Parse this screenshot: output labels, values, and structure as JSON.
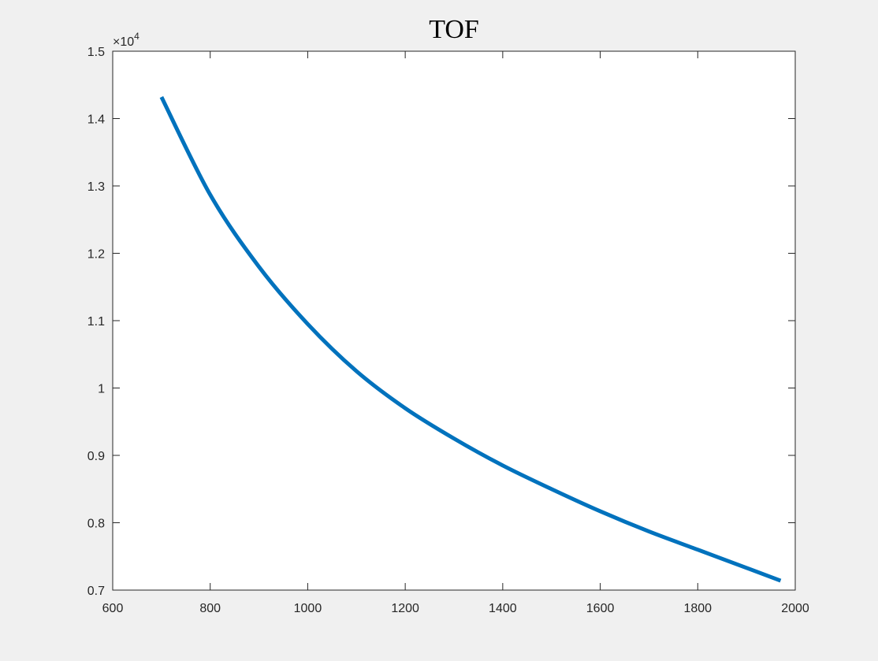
{
  "figure": {
    "background": "#f0f0f0"
  },
  "chart_data": {
    "type": "line",
    "title": "TOF",
    "xlabel": "",
    "ylabel": "",
    "xlim": [
      600,
      2000
    ],
    "ylim": [
      0.7,
      1.5
    ],
    "x_ticks": [
      600,
      800,
      1000,
      1200,
      1400,
      1600,
      1800,
      2000
    ],
    "x_tick_labels": [
      "600",
      "800",
      "1000",
      "1200",
      "1400",
      "1600",
      "1800",
      "2000"
    ],
    "y_ticks": [
      0.7,
      0.8,
      0.9,
      1.0,
      1.1,
      1.2,
      1.3,
      1.4,
      1.5
    ],
    "y_tick_labels": [
      "0.7",
      "0.8",
      "0.9",
      "1",
      "1.1",
      "1.2",
      "1.3",
      "1.4",
      "1.5"
    ],
    "y_exponent_base": "×10",
    "y_exponent_power": "4",
    "grid": false,
    "box": true,
    "series": [
      {
        "color": "#0072bd",
        "x": [
          700,
          800,
          900,
          1000,
          1100,
          1200,
          1300,
          1400,
          1500,
          1600,
          1700,
          1800,
          1900,
          1970
        ],
        "y": [
          1.432,
          1.287,
          1.18,
          1.095,
          1.025,
          0.97,
          0.925,
          0.885,
          0.85,
          0.817,
          0.787,
          0.76,
          0.733,
          0.714
        ]
      }
    ]
  }
}
